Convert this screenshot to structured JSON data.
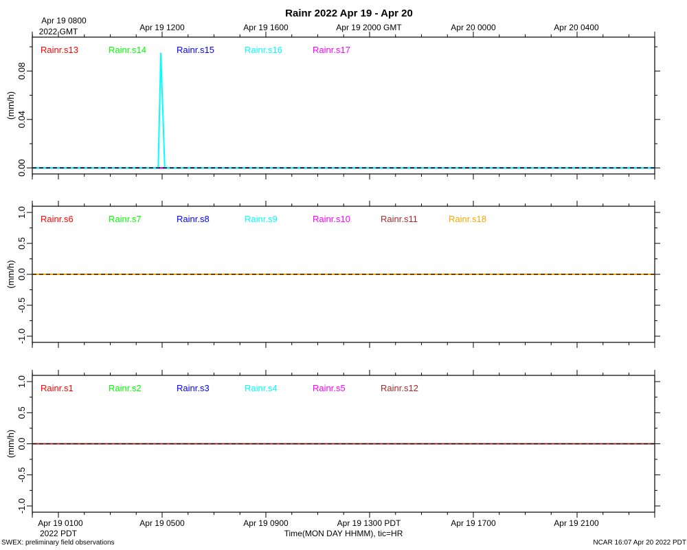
{
  "title": "Rainr 2022 Apr 19 - Apr 20",
  "top_axis": {
    "labels": [
      "Apr 19 0800",
      "Apr 19 1200",
      "Apr 19 1600",
      "Apr 19 2000 GMT",
      "Apr 20 0000",
      "Apr 20 0400"
    ],
    "sublabel": "2022 GMT"
  },
  "bottom_axis": {
    "labels": [
      "Apr 19 0100",
      "Apr 19 0500",
      "Apr 19 0900",
      "Apr 19 1300 PDT",
      "Apr 19 1700",
      "Apr 19 2100"
    ],
    "sublabel": "2022 PDT",
    "xlabel": "Time(MON DAY HHMM), tic=HR"
  },
  "footer": {
    "left": "SWEX: preliminary field observations",
    "right": "NCAR 16:07 Apr 20 2022 PDT"
  },
  "chart_data": [
    {
      "type": "line",
      "ylabel": "(mm/h)",
      "ylim": [
        -0.005,
        0.108
      ],
      "yticks": [
        0.0,
        0.04,
        0.08
      ],
      "yticklabels": [
        "0.00",
        "0.04",
        "0.08"
      ],
      "xlim_hours_pdt": [
        0.0,
        24.0
      ],
      "series": [
        {
          "name": "Rainr.s13",
          "color": "#ff0000",
          "x": [
            0,
            24
          ],
          "y": [
            0,
            0
          ]
        },
        {
          "name": "Rainr.s14",
          "color": "#00ff00",
          "x": [
            0,
            24
          ],
          "y": [
            0,
            0
          ]
        },
        {
          "name": "Rainr.s15",
          "color": "#0000ff",
          "x": [
            0,
            24
          ],
          "y": [
            0,
            0
          ]
        },
        {
          "name": "Rainr.s16",
          "color": "#00ffff",
          "x": [
            0,
            3.85,
            3.95,
            4.1,
            24
          ],
          "y": [
            0,
            0,
            0.095,
            0,
            0
          ]
        },
        {
          "name": "Rainr.s17",
          "color": "#ff00ff",
          "x": [
            0,
            24
          ],
          "y": [
            0,
            0
          ]
        }
      ]
    },
    {
      "type": "line",
      "ylabel": "(mm/h)",
      "ylim": [
        -1.1,
        1.1
      ],
      "yticks": [
        1.0,
        0.5,
        0.0,
        -0.5,
        -1.0
      ],
      "yticklabels": [
        "1.0",
        "0.5",
        "0.0",
        "-0.5",
        "-1.0"
      ],
      "xlim_hours_pdt": [
        0.0,
        24.0
      ],
      "series": [
        {
          "name": "Rainr.s6",
          "color": "#ff0000",
          "x": [
            0,
            24
          ],
          "y": [
            0,
            0
          ]
        },
        {
          "name": "Rainr.s7",
          "color": "#00ff00",
          "x": [
            0,
            24
          ],
          "y": [
            0,
            0
          ]
        },
        {
          "name": "Rainr.s8",
          "color": "#0000ff",
          "x": [
            0,
            24
          ],
          "y": [
            0,
            0
          ]
        },
        {
          "name": "Rainr.s9",
          "color": "#00ffff",
          "x": [
            0,
            24
          ],
          "y": [
            0,
            0
          ]
        },
        {
          "name": "Rainr.s10",
          "color": "#ff00ff",
          "x": [
            0,
            24
          ],
          "y": [
            0,
            0
          ]
        },
        {
          "name": "Rainr.s11",
          "color": "#a52a2a",
          "x": [
            0,
            24
          ],
          "y": [
            0,
            0
          ]
        },
        {
          "name": "Rainr.s18",
          "color": "#ffa500",
          "x": [
            0,
            24
          ],
          "y": [
            0,
            0
          ]
        }
      ]
    },
    {
      "type": "line",
      "ylabel": "(mm/h)",
      "ylim": [
        -1.1,
        1.1
      ],
      "yticks": [
        1.0,
        0.5,
        0.0,
        -0.5,
        -1.0
      ],
      "yticklabels": [
        "1.0",
        "0.5",
        "0.0",
        "-0.5",
        "-1.0"
      ],
      "xlim_hours_pdt": [
        0.0,
        24.0
      ],
      "series": [
        {
          "name": "Rainr.s1",
          "color": "#ff0000",
          "x": [
            0,
            24
          ],
          "y": [
            0,
            0
          ]
        },
        {
          "name": "Rainr.s2",
          "color": "#00ff00",
          "x": [
            0,
            24
          ],
          "y": [
            0,
            0
          ]
        },
        {
          "name": "Rainr.s3",
          "color": "#0000ff",
          "x": [
            0,
            24
          ],
          "y": [
            0,
            0
          ]
        },
        {
          "name": "Rainr.s4",
          "color": "#00ffff",
          "x": [
            0,
            24
          ],
          "y": [
            0,
            0
          ]
        },
        {
          "name": "Rainr.s5",
          "color": "#ff00ff",
          "x": [
            0,
            24
          ],
          "y": [
            0,
            0
          ]
        },
        {
          "name": "Rainr.s12",
          "color": "#a52a2a",
          "x": [
            0,
            24
          ],
          "y": [
            0,
            0
          ]
        }
      ]
    }
  ]
}
